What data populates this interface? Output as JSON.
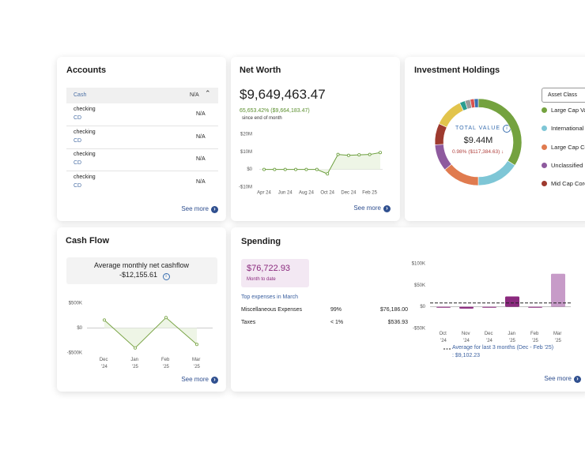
{
  "accounts": {
    "title": "Accounts",
    "group": {
      "name": "Cash",
      "value": "N/A"
    },
    "rows": [
      {
        "name": "checking",
        "type": "CD",
        "value": "N/A"
      },
      {
        "name": "checking",
        "type": "CD",
        "value": "N/A"
      },
      {
        "name": "checking",
        "type": "CD",
        "value": "N/A"
      },
      {
        "name": "checking",
        "type": "CD",
        "value": "N/A"
      }
    ],
    "link": "See more"
  },
  "net_worth": {
    "title": "Net Worth",
    "value": "$9,649,463.47",
    "change": "65,653.42% ($9,664,183.47)",
    "since": "since end of month",
    "chart": {
      "type": "line",
      "categories": [
        "Apr 24",
        null,
        "Jun 24",
        null,
        "Aug 24",
        null,
        "Oct 24",
        null,
        "Dec 24",
        null,
        "Feb 25",
        null
      ],
      "values": [
        0,
        0,
        0,
        0,
        0,
        0,
        -2500000,
        8500000,
        8000000,
        8300000,
        8500000,
        9600000
      ],
      "color": "#6b9e3c",
      "ylim": [
        -10000000,
        20000000
      ],
      "yticks": [
        {
          "value": 20000000,
          "label": "$20M"
        },
        {
          "value": 10000000,
          "label": "$10M"
        },
        {
          "value": 0,
          "label": "$0"
        },
        {
          "value": -10000000,
          "label": "-$10M"
        }
      ]
    },
    "link": "See more"
  },
  "holdings": {
    "title": "Investment Holdings",
    "selector": "Asset Class",
    "total_label": "TOTAL VALUE",
    "total": "$9.44M",
    "change": "0.98% ($117,384.63)",
    "chart": {
      "type": "pie",
      "categories": [
        "Large Cap Va",
        "International",
        "Large Cap Co",
        "Unclassified",
        "Mid Cap Core",
        null,
        null,
        null,
        null,
        null
      ],
      "values": [
        34,
        16,
        14,
        10,
        8,
        11,
        2,
        2,
        1.5,
        1.5
      ],
      "colors": [
        "#74a23f",
        "#7ec6d6",
        "#e07b4f",
        "#8e5a9e",
        "#9e3a2e",
        "#e2c44c",
        "#2a9d8f",
        "#9a9a9a",
        "#d9534f",
        "#3a6fb0"
      ]
    }
  },
  "cash_flow": {
    "title": "Cash Flow",
    "summary_label": "Average monthly net cashflow",
    "summary": "-$12,155.61",
    "chart": {
      "type": "line",
      "categories": [
        "Dec '24",
        "Jan '25",
        "Feb '25",
        "Mar '25"
      ],
      "values": [
        160000,
        -400000,
        210000,
        -330000
      ],
      "color": "#79a445",
      "ylim": [
        -500000,
        500000
      ],
      "yticks": [
        {
          "value": 500000,
          "label": "$500K"
        },
        {
          "value": 0,
          "label": "$0"
        },
        {
          "value": -500000,
          "label": "-$500K"
        }
      ]
    },
    "link": "See more"
  },
  "spending": {
    "title": "Spending",
    "total": "$76,722.93",
    "total_label": "Month to date",
    "top_label": "Top expenses in March",
    "rows": [
      [
        "Miscellaneous Expenses",
        "99%",
        "$76,186.00"
      ],
      [
        "Taxes",
        "< 1%",
        "$536.93"
      ]
    ],
    "chart": {
      "type": "bar",
      "categories": [
        "Oct '24",
        "Nov '24",
        "Dec '24",
        "Jan '25",
        "Feb '25",
        "Mar '25"
      ],
      "values": [
        -2000,
        -4000,
        -2000,
        24000,
        -2000,
        76722.93
      ],
      "colors": [
        "#8b2a7e",
        "#8b2a7e",
        "#8b2a7e",
        "#8b2a7e",
        "#8b2a7e",
        "#c79bc8"
      ],
      "average": 9102.23,
      "average_label": "Average for last 3 months (Dec - Feb '25) : $9,102.23",
      "ylim": [
        -50000,
        100000
      ],
      "yticks": [
        {
          "value": 100000,
          "label": "$100K"
        },
        {
          "value": 50000,
          "label": "$50K"
        },
        {
          "value": 0,
          "label": "$0"
        },
        {
          "value": -50000,
          "label": "-$50K"
        }
      ]
    },
    "link": "See more"
  }
}
